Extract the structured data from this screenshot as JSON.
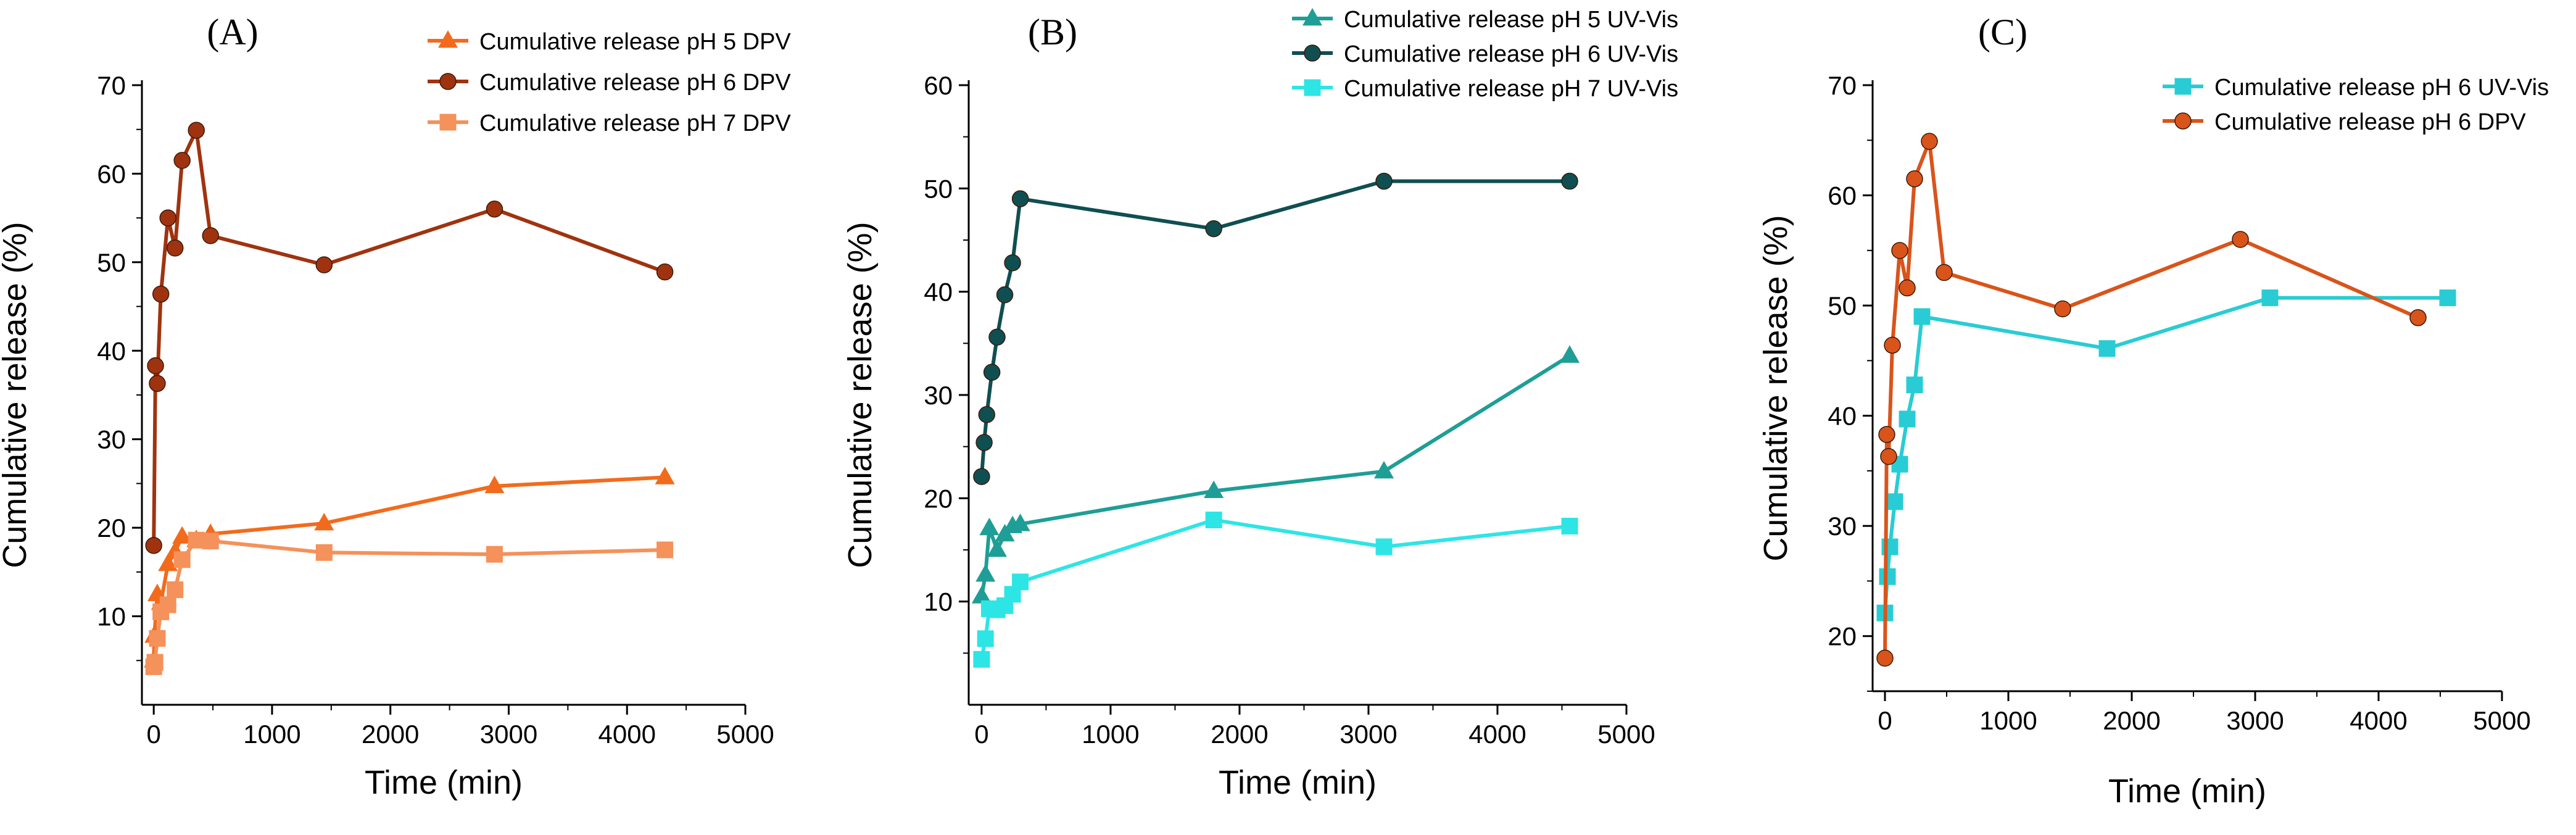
{
  "chart_data": [
    {
      "type": "line",
      "panel_label": "(A)",
      "xlabel": "Time (min)",
      "ylabel": "Cumulative release (%)",
      "xlim": [
        -100,
        5000
      ],
      "ylim": [
        0,
        70
      ],
      "xticks": [
        0,
        1000,
        2000,
        3000,
        4000,
        5000
      ],
      "yticks": [
        10,
        20,
        30,
        40,
        50,
        60,
        70
      ],
      "legend_position": "top-right",
      "series": [
        {
          "name": "Cumulative release pH 5 DPV",
          "color": "#F26B1D",
          "marker": "triangle",
          "x": [
            0,
            5,
            30,
            60,
            120,
            180,
            240,
            360,
            480,
            1440,
            2880,
            4320
          ],
          "y": [
            5.0,
            7.8,
            12.5,
            11.5,
            15.9,
            17.3,
            19.0,
            18.6,
            19.3,
            20.5,
            24.7,
            25.7
          ]
        },
        {
          "name": "Cumulative release pH 6 DPV",
          "color": "#A0330F",
          "marker": "circle",
          "x": [
            0,
            15,
            30,
            60,
            120,
            180,
            240,
            360,
            480,
            1440,
            2880,
            4320
          ],
          "y": [
            18.0,
            38.3,
            36.3,
            46.4,
            55.0,
            51.6,
            61.5,
            64.9,
            53.0,
            49.7,
            56.0,
            48.9
          ]
        },
        {
          "name": "Cumulative release pH 7 DPV",
          "color": "#F5915A",
          "marker": "square",
          "x": [
            0,
            10,
            30,
            60,
            120,
            180,
            240,
            360,
            480,
            1440,
            2880,
            4320
          ],
          "y": [
            4.3,
            4.8,
            7.5,
            10.5,
            11.3,
            13.0,
            16.4,
            18.6,
            18.5,
            17.2,
            17.0,
            17.5
          ]
        }
      ]
    },
    {
      "type": "line",
      "panel_label": "(B)",
      "xlabel": "Time (min)",
      "ylabel": "Cumulative release (%)",
      "xlim": [
        -100,
        5000
      ],
      "ylim": [
        0,
        60
      ],
      "xticks": [
        0,
        1000,
        2000,
        3000,
        4000,
        5000
      ],
      "yticks": [
        10,
        20,
        30,
        40,
        50,
        60
      ],
      "legend_position": "top-right",
      "series": [
        {
          "name": "Cumulative release pH 5 UV-Vis",
          "color": "#1E9E96",
          "marker": "triangle",
          "x": [
            0,
            30,
            60,
            120,
            180,
            240,
            300,
            1800,
            3120,
            4560
          ],
          "y": [
            10.5,
            12.6,
            17.1,
            15.0,
            16.5,
            17.3,
            17.5,
            20.7,
            22.6,
            33.8
          ]
        },
        {
          "name": "Cumulative release pH 6 UV-Vis",
          "color": "#0F4F52",
          "marker": "circle",
          "x": [
            0,
            20,
            40,
            80,
            120,
            180,
            240,
            300,
            1800,
            3120,
            4560
          ],
          "y": [
            22.1,
            25.4,
            28.1,
            32.2,
            35.6,
            39.7,
            42.8,
            49.0,
            46.1,
            50.7,
            50.7
          ]
        },
        {
          "name": "Cumulative release pH 7 UV-Vis",
          "color": "#2EE5E5",
          "marker": "square",
          "x": [
            0,
            30,
            60,
            120,
            180,
            240,
            300,
            1800,
            3120,
            4560
          ],
          "y": [
            4.4,
            6.4,
            9.3,
            9.2,
            9.6,
            10.7,
            11.9,
            17.9,
            15.3,
            17.3
          ]
        }
      ]
    },
    {
      "type": "line",
      "panel_label": "(C)",
      "xlabel": "Time (min)",
      "ylabel": "Cumulative release (%)",
      "xlim": [
        -100,
        5000
      ],
      "ylim": [
        15,
        70
      ],
      "xticks": [
        0,
        1000,
        2000,
        3000,
        4000,
        5000
      ],
      "yticks": [
        20,
        30,
        40,
        50,
        60,
        70
      ],
      "legend_position": "top-right",
      "series": [
        {
          "name": "Cumulative release pH 6 UV-Vis",
          "color": "#29CCD4",
          "marker": "square",
          "x": [
            0,
            20,
            40,
            80,
            120,
            180,
            240,
            300,
            1800,
            3120,
            4560
          ],
          "y": [
            22.1,
            25.4,
            28.1,
            32.2,
            35.6,
            39.7,
            42.8,
            49.0,
            46.1,
            50.7,
            50.7
          ]
        },
        {
          "name": "Cumulative release pH 6 DPV",
          "color": "#D9541A",
          "marker": "circle",
          "x": [
            0,
            15,
            30,
            60,
            120,
            180,
            240,
            360,
            480,
            1440,
            2880,
            4320
          ],
          "y": [
            18.0,
            38.3,
            36.3,
            46.4,
            55.0,
            51.6,
            61.5,
            64.9,
            53.0,
            49.7,
            56.0,
            48.9
          ]
        }
      ]
    }
  ]
}
